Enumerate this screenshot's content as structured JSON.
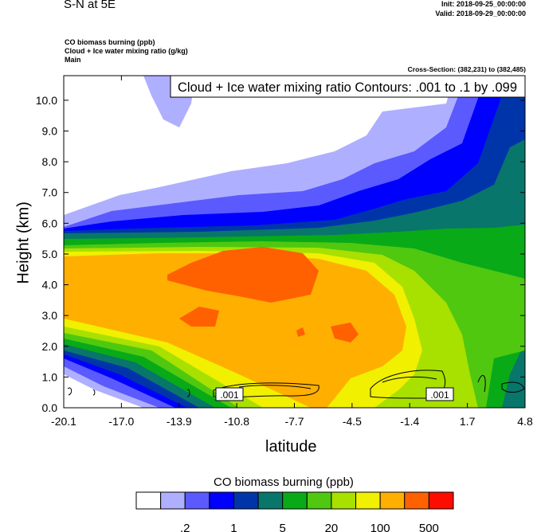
{
  "header": {
    "title": "S-N at 5E",
    "init": "Init: 2018-09-25_00:00:00",
    "valid": "Valid: 2018-09-29_00:00:00",
    "fields": [
      "CO biomass burning   (ppb)",
      "Cloud + Ice water mixing ratio   (g/kg)",
      "Main"
    ],
    "cross_section": "Cross-Section: (382,231) to (382,485)"
  },
  "chart_data": {
    "type": "heatmap",
    "title": "Cloud + Ice water mixing ratio Contours: .001 to .1 by .099",
    "xlabel": "latitude",
    "ylabel": "Height (km)",
    "xlim": [
      -20.1,
      4.8
    ],
    "ylim": [
      0,
      10.8
    ],
    "x_ticks": [
      "-20.1",
      "-17.0",
      "-13.9",
      "-10.8",
      "-7.7",
      "-4.5",
      "-1.4",
      "1.7",
      "4.8"
    ],
    "y_ticks": [
      "0.0",
      "1.0",
      "2.0",
      "3.0",
      "4.0",
      "5.0",
      "6.0",
      "7.0",
      "8.0",
      "9.0",
      "10.0"
    ],
    "contour_labels": [
      ".001",
      ".001"
    ],
    "colorbar": {
      "title": "CO biomass burning  (ppb)",
      "colors": [
        "#FFFFFF",
        "#AFAFFF",
        "#5A5AFF",
        "#0000FF",
        "#0035AA",
        "#08766A",
        "#08AA18",
        "#50C810",
        "#A8E000",
        "#F0F000",
        "#FFAF00",
        "#FF6000",
        "#FF0C00"
      ],
      "labels": [
        ".2",
        "1",
        "5",
        "20",
        "100",
        "500"
      ]
    }
  }
}
